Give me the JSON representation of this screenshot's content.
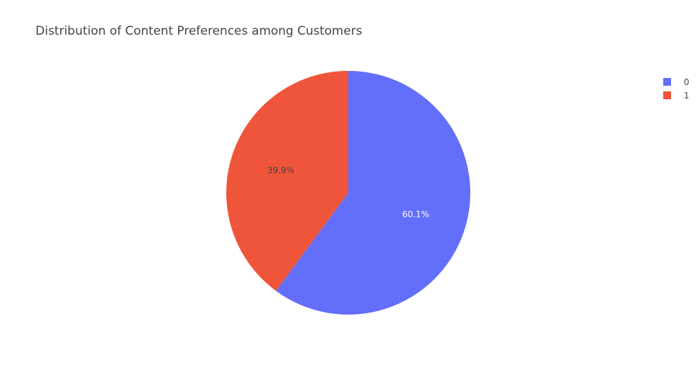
{
  "chart_data": {
    "type": "pie",
    "title": "Distribution of Content Preferences among Customers",
    "labels": [
      "0",
      "1"
    ],
    "values": [
      60.1,
      39.9
    ],
    "slice_labels": [
      "60.1%",
      "39.9%"
    ],
    "colors": [
      "#636efa",
      "#ef553b"
    ],
    "label_colors": [
      "#ffffff",
      "#444444"
    ],
    "legend_position": "top-right"
  }
}
